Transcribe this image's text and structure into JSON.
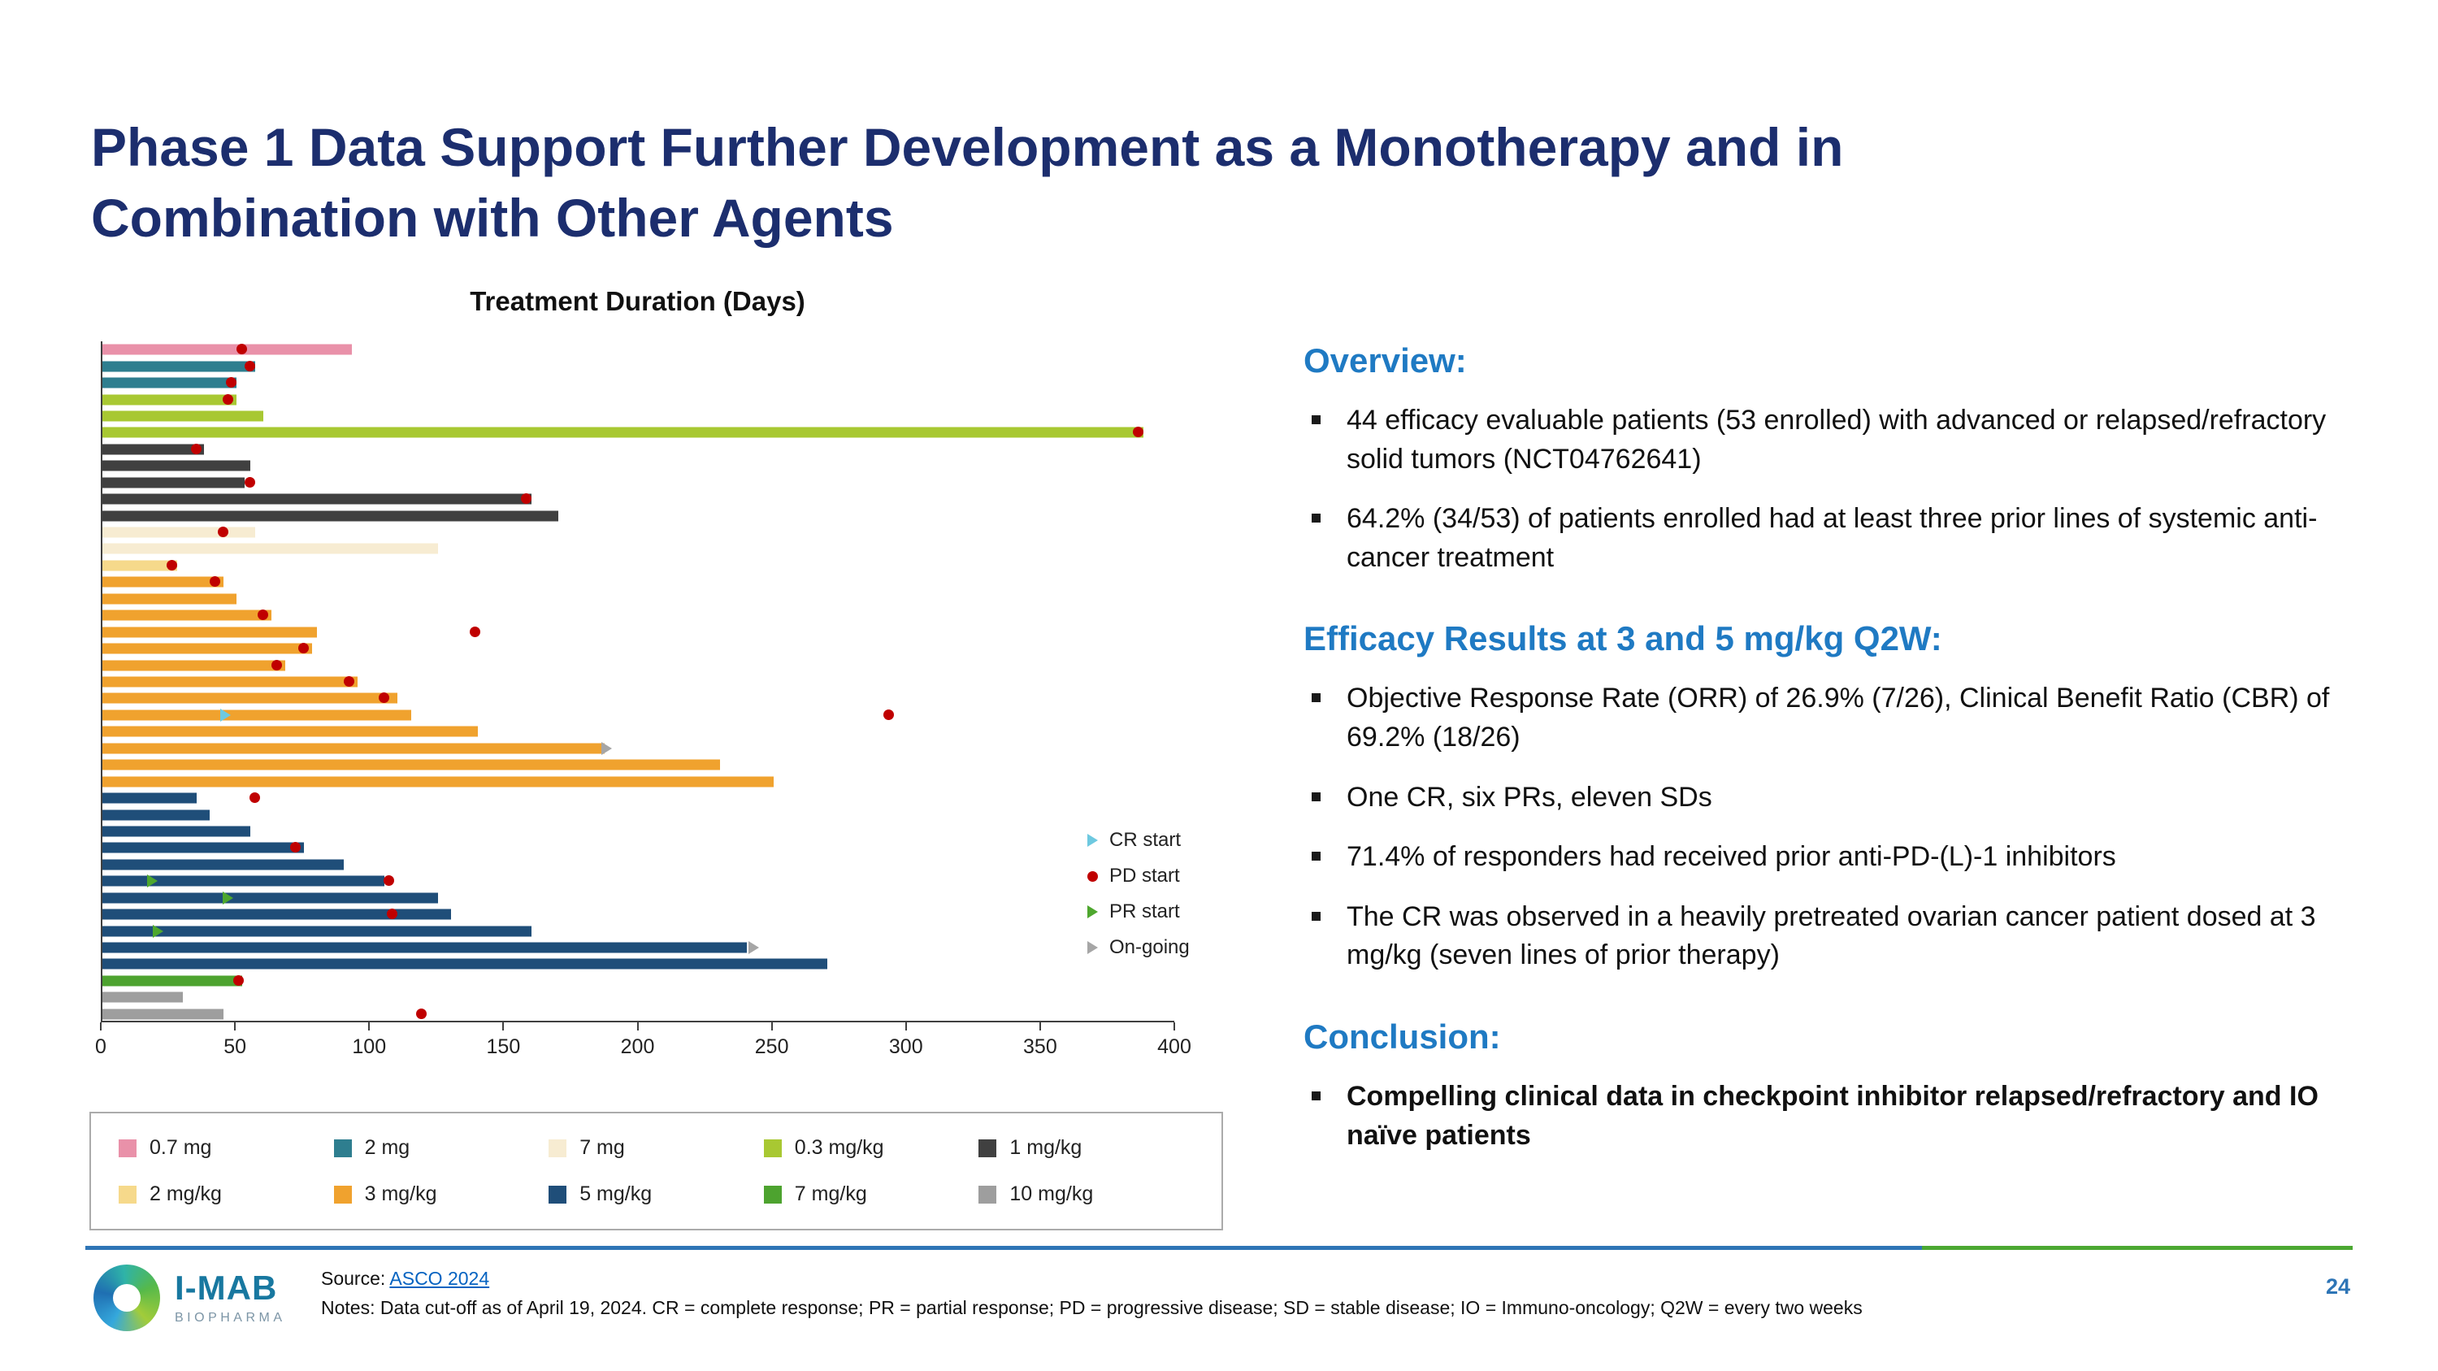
{
  "slide": {
    "title_line1": "Phase 1 Data Support Further Development as a Monotherapy and in",
    "title_line2": "Combination with Other Agents",
    "page_number": "24"
  },
  "right_panel": {
    "sections": [
      {
        "heading": "Overview:",
        "bullets": [
          {
            "text": "44 efficacy evaluable patients (53 enrolled) with advanced or relapsed/refractory solid tumors (NCT04762641)",
            "bold": false
          },
          {
            "text": "64.2% (34/53) of patients enrolled had at least three prior lines of systemic anti-cancer treatment",
            "bold": false
          }
        ]
      },
      {
        "heading": "Efficacy Results at 3 and 5 mg/kg Q2W:",
        "bullets": [
          {
            "text": "Objective Response Rate (ORR) of 26.9% (7/26), Clinical Benefit Ratio (CBR) of 69.2% (18/26)",
            "bold": false
          },
          {
            "text": "One CR, six PRs, eleven SDs",
            "bold": false
          },
          {
            "text": "71.4% of responders had received prior anti-PD-(L)-1 inhibitors",
            "bold": false
          },
          {
            "text": "The CR was observed in a heavily pretreated ovarian cancer patient dosed at 3 mg/kg (seven lines of prior therapy)",
            "bold": false
          }
        ]
      },
      {
        "heading": "Conclusion:",
        "bullets": [
          {
            "text": "Compelling clinical data in checkpoint inhibitor relapsed/refractory and IO naïve patients",
            "bold": true
          }
        ]
      }
    ]
  },
  "footer": {
    "source_label": "Source: ",
    "source_link": "ASCO 2024",
    "notes": "Notes: Data cut-off as of April 19, 2024. CR = complete response; PR = partial response; PD = progressive disease; SD = stable disease; IO = Immuno-oncology; Q2W = every two weeks",
    "logo_primary": "I-MAB",
    "logo_secondary": "BIOPHARMA"
  },
  "colors": {
    "title_navy": "#1C2E6E",
    "heading_blue": "#1F7AC3",
    "divider_blue": "#2E75B6",
    "divider_green": "#4CA832",
    "link_blue": "#0563C1"
  },
  "chart_data": {
    "type": "bar",
    "orientation": "horizontal",
    "title": "Treatment Duration (Days)",
    "xlabel": "Treatment Duration (Days)",
    "xlim": [
      0,
      400
    ],
    "x_ticks": [
      0,
      50,
      100,
      150,
      200,
      250,
      300,
      350,
      400
    ],
    "grid": false,
    "legend_position": "bottom-box",
    "dose_groups": [
      {
        "label": "0.7 mg",
        "color": "#E991A9"
      },
      {
        "label": "2 mg",
        "color": "#2E7E8F"
      },
      {
        "label": "7 mg",
        "color": "#F7ECD2"
      },
      {
        "label": "0.3 mg/kg",
        "color": "#A8C832"
      },
      {
        "label": "1 mg/kg",
        "color": "#404040"
      },
      {
        "label": "2 mg/kg",
        "color": "#F6D98B"
      },
      {
        "label": "3 mg/kg",
        "color": "#F0A22E"
      },
      {
        "label": "5 mg/kg",
        "color": "#1F4E79"
      },
      {
        "label": "7 mg/kg",
        "color": "#4DA32F"
      },
      {
        "label": "10 mg/kg",
        "color": "#9E9E9E"
      }
    ],
    "marker_colors": {
      "CR": "#6EC9E0",
      "PD": "#C00000",
      "PR": "#4EA72E",
      "OG": "#A6A6A6"
    },
    "marker_legend": [
      {
        "type": "CR",
        "label": "CR start"
      },
      {
        "type": "PD",
        "label": "PD start"
      },
      {
        "type": "PR",
        "label": "PR start"
      },
      {
        "type": "OG",
        "label": "On-going"
      }
    ],
    "patients": [
      {
        "dose": "0.7 mg",
        "days": 93,
        "markers": [
          {
            "type": "PD",
            "day": 52
          }
        ]
      },
      {
        "dose": "2 mg",
        "days": 57,
        "markers": [
          {
            "type": "PD",
            "day": 55
          }
        ]
      },
      {
        "dose": "2 mg",
        "days": 50,
        "markers": [
          {
            "type": "PD",
            "day": 48
          }
        ]
      },
      {
        "dose": "0.3 mg/kg",
        "days": 50,
        "markers": [
          {
            "type": "PD",
            "day": 47
          }
        ]
      },
      {
        "dose": "0.3 mg/kg",
        "days": 60,
        "markers": []
      },
      {
        "dose": "0.3 mg/kg",
        "days": 388,
        "markers": [
          {
            "type": "PD",
            "day": 386
          }
        ]
      },
      {
        "dose": "1 mg/kg",
        "days": 38,
        "markers": [
          {
            "type": "PD",
            "day": 35
          }
        ]
      },
      {
        "dose": "1 mg/kg",
        "days": 55,
        "markers": []
      },
      {
        "dose": "1 mg/kg",
        "days": 53,
        "markers": [
          {
            "type": "PD",
            "day": 55
          }
        ]
      },
      {
        "dose": "1 mg/kg",
        "days": 160,
        "markers": [
          {
            "type": "PD",
            "day": 158
          }
        ]
      },
      {
        "dose": "1 mg/kg",
        "days": 170,
        "markers": []
      },
      {
        "dose": "7 mg",
        "days": 57,
        "markers": [
          {
            "type": "PD",
            "day": 45
          }
        ]
      },
      {
        "dose": "7 mg",
        "days": 125,
        "markers": []
      },
      {
        "dose": "2 mg/kg",
        "days": 28,
        "markers": [
          {
            "type": "PD",
            "day": 26
          }
        ]
      },
      {
        "dose": "3 mg/kg",
        "days": 45,
        "markers": [
          {
            "type": "PD",
            "day": 42
          }
        ]
      },
      {
        "dose": "3 mg/kg",
        "days": 50,
        "markers": []
      },
      {
        "dose": "3 mg/kg",
        "days": 63,
        "markers": [
          {
            "type": "PD",
            "day": 60
          }
        ]
      },
      {
        "dose": "3 mg/kg",
        "days": 80,
        "markers": [
          {
            "type": "PD",
            "day": 139
          }
        ]
      },
      {
        "dose": "3 mg/kg",
        "days": 78,
        "markers": [
          {
            "type": "PD",
            "day": 75
          }
        ]
      },
      {
        "dose": "3 mg/kg",
        "days": 68,
        "markers": [
          {
            "type": "PD",
            "day": 65
          }
        ]
      },
      {
        "dose": "3 mg/kg",
        "days": 95,
        "markers": [
          {
            "type": "PD",
            "day": 92
          }
        ]
      },
      {
        "dose": "3 mg/kg",
        "days": 110,
        "markers": [
          {
            "type": "PD",
            "day": 105
          }
        ]
      },
      {
        "dose": "3 mg/kg",
        "days": 115,
        "markers": [
          {
            "type": "CR",
            "day": 45
          },
          {
            "type": "PD",
            "day": 293
          }
        ]
      },
      {
        "dose": "3 mg/kg",
        "days": 140,
        "markers": []
      },
      {
        "dose": "3 mg/kg",
        "days": 187,
        "markers": [
          {
            "type": "OG",
            "day": 187
          }
        ]
      },
      {
        "dose": "3 mg/kg",
        "days": 230,
        "markers": []
      },
      {
        "dose": "3 mg/kg",
        "days": 250,
        "markers": []
      },
      {
        "dose": "5 mg/kg",
        "days": 35,
        "markers": [
          {
            "type": "PD",
            "day": 57
          }
        ]
      },
      {
        "dose": "5 mg/kg",
        "days": 40,
        "markers": []
      },
      {
        "dose": "5 mg/kg",
        "days": 55,
        "markers": []
      },
      {
        "dose": "5 mg/kg",
        "days": 75,
        "markers": [
          {
            "type": "PD",
            "day": 72
          }
        ]
      },
      {
        "dose": "5 mg/kg",
        "days": 90,
        "markers": []
      },
      {
        "dose": "5 mg/kg",
        "days": 105,
        "markers": [
          {
            "type": "PR",
            "day": 18
          },
          {
            "type": "PD",
            "day": 107
          }
        ]
      },
      {
        "dose": "5 mg/kg",
        "days": 125,
        "markers": [
          {
            "type": "PR",
            "day": 46
          }
        ]
      },
      {
        "dose": "5 mg/kg",
        "days": 130,
        "markers": [
          {
            "type": "PD",
            "day": 108
          }
        ]
      },
      {
        "dose": "5 mg/kg",
        "days": 160,
        "markers": [
          {
            "type": "PR",
            "day": 20
          }
        ]
      },
      {
        "dose": "5 mg/kg",
        "days": 240,
        "markers": [
          {
            "type": "OG",
            "day": 242
          }
        ]
      },
      {
        "dose": "5 mg/kg",
        "days": 270,
        "markers": []
      },
      {
        "dose": "7 mg/kg",
        "days": 52,
        "markers": [
          {
            "type": "PD",
            "day": 51
          }
        ]
      },
      {
        "dose": "10 mg/kg",
        "days": 30,
        "markers": []
      },
      {
        "dose": "10 mg/kg",
        "days": 45,
        "markers": [
          {
            "type": "PD",
            "day": 119
          }
        ]
      }
    ]
  }
}
